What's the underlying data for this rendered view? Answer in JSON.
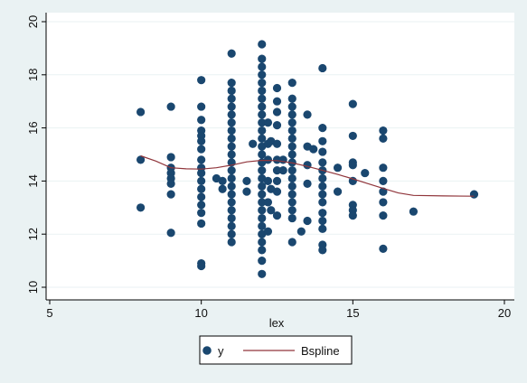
{
  "colors": {
    "background": "#eaf2f3",
    "plot_background": "#ffffff",
    "marker": "#1a476f",
    "line": "#90353b",
    "grid": "#eaf2f3",
    "axis": "#000000"
  },
  "chart_data": {
    "type": "scatter",
    "title": "",
    "xlabel": "lex",
    "ylabel": "",
    "xlim": [
      5,
      20
    ],
    "ylim": [
      10,
      20
    ],
    "xticks": [
      5,
      10,
      15,
      20
    ],
    "yticks": [
      10,
      12,
      14,
      16,
      18,
      20
    ],
    "grid": true,
    "legend_position": "bottom",
    "series": [
      {
        "name": "y",
        "kind": "scatter",
        "marker_icon": "circle-marker-icon",
        "points": [
          [
            8,
            16.6
          ],
          [
            8,
            14.8
          ],
          [
            8,
            13.0
          ],
          [
            9,
            16.8
          ],
          [
            9,
            14.9
          ],
          [
            9,
            14.5
          ],
          [
            9,
            14.3
          ],
          [
            9,
            14.1
          ],
          [
            9,
            13.9
          ],
          [
            9,
            13.5
          ],
          [
            9,
            12.05
          ],
          [
            10,
            17.8
          ],
          [
            10,
            16.8
          ],
          [
            10,
            16.3
          ],
          [
            10,
            15.9
          ],
          [
            10,
            15.7
          ],
          [
            10,
            15.5
          ],
          [
            10,
            15.2
          ],
          [
            10,
            14.8
          ],
          [
            10,
            14.5
          ],
          [
            10,
            14.3
          ],
          [
            10,
            14.0
          ],
          [
            10,
            13.7
          ],
          [
            10,
            13.4
          ],
          [
            10,
            13.1
          ],
          [
            10,
            12.8
          ],
          [
            10,
            12.4
          ],
          [
            10,
            10.9
          ],
          [
            10,
            10.8
          ],
          [
            10.5,
            14.1
          ],
          [
            10.7,
            13.7
          ],
          [
            10.7,
            14.0
          ],
          [
            11,
            18.8
          ],
          [
            11,
            17.7
          ],
          [
            11,
            17.4
          ],
          [
            11,
            17.1
          ],
          [
            11,
            16.8
          ],
          [
            11,
            16.5
          ],
          [
            11,
            16.2
          ],
          [
            11,
            15.9
          ],
          [
            11,
            15.6
          ],
          [
            11,
            15.3
          ],
          [
            11,
            15.0
          ],
          [
            11,
            14.7
          ],
          [
            11,
            14.4
          ],
          [
            11,
            14.1
          ],
          [
            11,
            13.8
          ],
          [
            11,
            13.5
          ],
          [
            11,
            13.2
          ],
          [
            11,
            12.9
          ],
          [
            11,
            12.6
          ],
          [
            11,
            12.3
          ],
          [
            11,
            12.0
          ],
          [
            11,
            11.7
          ],
          [
            11.5,
            14.0
          ],
          [
            11.5,
            13.6
          ],
          [
            11.7,
            15.4
          ],
          [
            12,
            19.15
          ],
          [
            12,
            18.6
          ],
          [
            12,
            18.3
          ],
          [
            12,
            18.0
          ],
          [
            12,
            17.7
          ],
          [
            12,
            17.4
          ],
          [
            12,
            17.1
          ],
          [
            12,
            16.8
          ],
          [
            12,
            16.5
          ],
          [
            12,
            16.2
          ],
          [
            12,
            15.9
          ],
          [
            12,
            15.6
          ],
          [
            12,
            15.3
          ],
          [
            12,
            15.0
          ],
          [
            12,
            14.7
          ],
          [
            12,
            14.4
          ],
          [
            12,
            14.1
          ],
          [
            12,
            13.8
          ],
          [
            12,
            13.5
          ],
          [
            12,
            13.2
          ],
          [
            12,
            12.9
          ],
          [
            12,
            12.6
          ],
          [
            12,
            12.3
          ],
          [
            12,
            12.0
          ],
          [
            12,
            11.7
          ],
          [
            12,
            11.4
          ],
          [
            12,
            11.0
          ],
          [
            12,
            10.5
          ],
          [
            12.2,
            16.2
          ],
          [
            12.2,
            15.4
          ],
          [
            12.2,
            14.8
          ],
          [
            12.2,
            14.0
          ],
          [
            12.2,
            13.2
          ],
          [
            12.2,
            12.1
          ],
          [
            12.3,
            15.5
          ],
          [
            12.3,
            13.7
          ],
          [
            12.3,
            12.9
          ],
          [
            12.5,
            17.5
          ],
          [
            12.5,
            17.0
          ],
          [
            12.5,
            16.6
          ],
          [
            12.5,
            16.1
          ],
          [
            12.5,
            15.4
          ],
          [
            12.5,
            14.8
          ],
          [
            12.5,
            14.4
          ],
          [
            12.5,
            14.0
          ],
          [
            12.5,
            13.6
          ],
          [
            12.5,
            12.7
          ],
          [
            12.7,
            14.4
          ],
          [
            12.7,
            14.8
          ],
          [
            13,
            17.7
          ],
          [
            13,
            17.1
          ],
          [
            13,
            16.8
          ],
          [
            13,
            16.5
          ],
          [
            13,
            16.2
          ],
          [
            13,
            15.9
          ],
          [
            13,
            15.6
          ],
          [
            13,
            15.3
          ],
          [
            13,
            15.0
          ],
          [
            13,
            14.7
          ],
          [
            13,
            14.4
          ],
          [
            13,
            14.1
          ],
          [
            13,
            13.8
          ],
          [
            13,
            13.5
          ],
          [
            13,
            13.2
          ],
          [
            13,
            12.9
          ],
          [
            13,
            12.6
          ],
          [
            13,
            11.7
          ],
          [
            13.3,
            12.1
          ],
          [
            13.5,
            16.5
          ],
          [
            13.5,
            15.3
          ],
          [
            13.5,
            14.6
          ],
          [
            13.5,
            13.9
          ],
          [
            13.5,
            12.5
          ],
          [
            13.7,
            15.2
          ],
          [
            14,
            18.25
          ],
          [
            14,
            16.0
          ],
          [
            14,
            15.5
          ],
          [
            14,
            15.1
          ],
          [
            14,
            14.7
          ],
          [
            14,
            14.4
          ],
          [
            14,
            14.1
          ],
          [
            14,
            13.8
          ],
          [
            14,
            13.5
          ],
          [
            14,
            13.2
          ],
          [
            14,
            12.8
          ],
          [
            14,
            12.5
          ],
          [
            14,
            12.2
          ],
          [
            14,
            11.6
          ],
          [
            14,
            11.4
          ],
          [
            14.5,
            14.5
          ],
          [
            14.5,
            13.6
          ],
          [
            15,
            16.9
          ],
          [
            15,
            15.7
          ],
          [
            15,
            14.7
          ],
          [
            15,
            14.6
          ],
          [
            15,
            14.0
          ],
          [
            15,
            13.1
          ],
          [
            15,
            12.9
          ],
          [
            15,
            12.7
          ],
          [
            15.4,
            14.3
          ],
          [
            16,
            15.9
          ],
          [
            16,
            15.6
          ],
          [
            16,
            14.5
          ],
          [
            16,
            14.0
          ],
          [
            16,
            13.6
          ],
          [
            16,
            13.2
          ],
          [
            16,
            12.7
          ],
          [
            16,
            11.45
          ],
          [
            17,
            12.85
          ],
          [
            19,
            13.5
          ]
        ]
      },
      {
        "name": "Bspline",
        "kind": "line",
        "points": [
          [
            8,
            14.95
          ],
          [
            8.5,
            14.75
          ],
          [
            9,
            14.5
          ],
          [
            9.5,
            14.46
          ],
          [
            10,
            14.45
          ],
          [
            10.5,
            14.5
          ],
          [
            11,
            14.6
          ],
          [
            11.5,
            14.72
          ],
          [
            12,
            14.78
          ],
          [
            12.5,
            14.77
          ],
          [
            13,
            14.68
          ],
          [
            13.5,
            14.55
          ],
          [
            14,
            14.4
          ],
          [
            14.5,
            14.25
          ],
          [
            15,
            14.08
          ],
          [
            15.5,
            13.9
          ],
          [
            16,
            13.72
          ],
          [
            16.5,
            13.55
          ],
          [
            17,
            13.46
          ],
          [
            18,
            13.44
          ],
          [
            19,
            13.43
          ]
        ]
      }
    ]
  },
  "legend": {
    "items": [
      {
        "label": "y",
        "icon": "circle-marker-icon"
      },
      {
        "label": "Bspline",
        "icon": "line-swatch-icon"
      }
    ]
  }
}
